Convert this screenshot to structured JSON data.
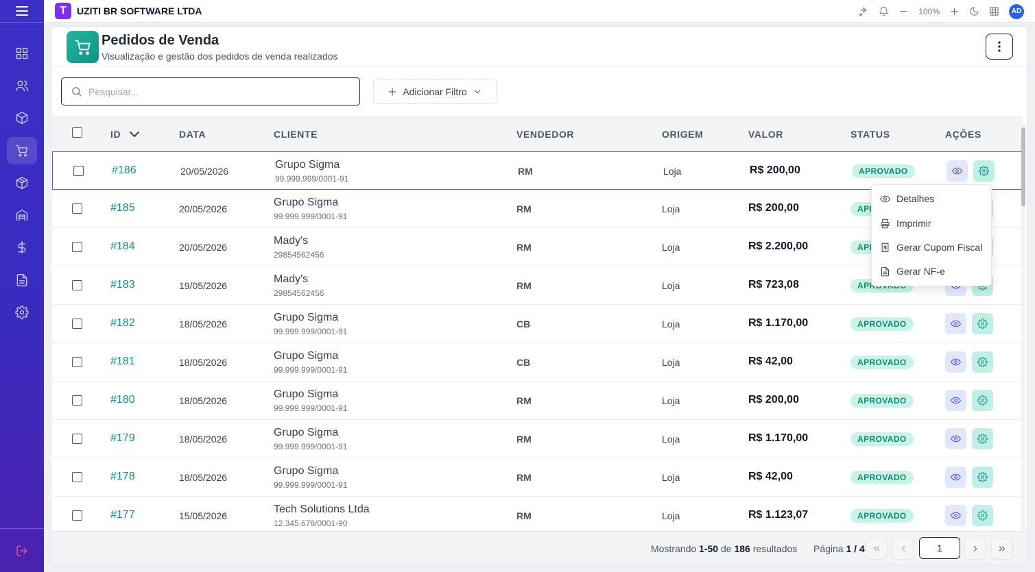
{
  "app": {
    "title": "UZITI BR SOFTWARE LTDA",
    "logo_letter": "T",
    "zoom": "100%",
    "avatar_initials": "AD"
  },
  "sidebar": {
    "items": [
      {
        "name": "dashboard-icon"
      },
      {
        "name": "users-icon"
      },
      {
        "name": "box-icon"
      },
      {
        "name": "cart-icon",
        "active": true
      },
      {
        "name": "package-icon"
      },
      {
        "name": "warehouse-icon"
      },
      {
        "name": "dollar-icon"
      },
      {
        "name": "document-icon"
      },
      {
        "name": "gear-icon"
      }
    ],
    "logout_icon": "logout-icon"
  },
  "page": {
    "title": "Pedidos de Venda",
    "subtitle": "Visualização e gestão dos pedidos de venda realizados"
  },
  "search": {
    "placeholder": "Pesquisar...",
    "value": ""
  },
  "filter_button": {
    "label": "Adicionar Filtro"
  },
  "table": {
    "headers": {
      "id": "ID",
      "data": "DATA",
      "cliente": "CLIENTE",
      "vendedor": "VENDEDOR",
      "origem": "ORIGEM",
      "valor": "VALOR",
      "status": "STATUS",
      "acoes": "AÇÕES"
    },
    "rows": [
      {
        "id": "#186",
        "data": "20/05/2026",
        "cliente": "Grupo Sigma",
        "doc": "99.999.999/0001-91",
        "vendedor": "RM",
        "origem": "Loja",
        "valor": "R$ 200,00",
        "status": "APROVADO"
      },
      {
        "id": "#185",
        "data": "20/05/2026",
        "cliente": "Grupo Sigma",
        "doc": "99.999.999/0001-91",
        "vendedor": "RM",
        "origem": "Loja",
        "valor": "R$ 200,00",
        "status": "APROVADO"
      },
      {
        "id": "#184",
        "data": "20/05/2026",
        "cliente": "Mady's",
        "doc": "29854562456",
        "vendedor": "RM",
        "origem": "Loja",
        "valor": "R$ 2.200,00",
        "status": "APROVADO"
      },
      {
        "id": "#183",
        "data": "19/05/2026",
        "cliente": "Mady's",
        "doc": "29854562456",
        "vendedor": "RM",
        "origem": "Loja",
        "valor": "R$ 723,08",
        "status": "APROVADO"
      },
      {
        "id": "#182",
        "data": "18/05/2026",
        "cliente": "Grupo Sigma",
        "doc": "99.999.999/0001-91",
        "vendedor": "CB",
        "origem": "Loja",
        "valor": "R$ 1.170,00",
        "status": "APROVADO"
      },
      {
        "id": "#181",
        "data": "18/05/2026",
        "cliente": "Grupo Sigma",
        "doc": "99.999.999/0001-91",
        "vendedor": "CB",
        "origem": "Loja",
        "valor": "R$ 42,00",
        "status": "APROVADO"
      },
      {
        "id": "#180",
        "data": "18/05/2026",
        "cliente": "Grupo Sigma",
        "doc": "99.999.999/0001-91",
        "vendedor": "RM",
        "origem": "Loja",
        "valor": "R$ 200,00",
        "status": "APROVADO"
      },
      {
        "id": "#179",
        "data": "18/05/2026",
        "cliente": "Grupo Sigma",
        "doc": "99.999.999/0001-91",
        "vendedor": "RM",
        "origem": "Loja",
        "valor": "R$ 1.170,00",
        "status": "APROVADO"
      },
      {
        "id": "#178",
        "data": "18/05/2026",
        "cliente": "Grupo Sigma",
        "doc": "99.999.999/0001-91",
        "vendedor": "RM",
        "origem": "Loja",
        "valor": "R$ 42,00",
        "status": "APROVADO"
      },
      {
        "id": "#177",
        "data": "15/05/2026",
        "cliente": "Tech Solutions Ltda",
        "doc": "12.345.678/0001-90",
        "vendedor": "RM",
        "origem": "Loja",
        "valor": "R$ 1.123,07",
        "status": "APROVADO"
      }
    ]
  },
  "context_menu": {
    "items": [
      {
        "label": "Detalhes",
        "icon": "eye-icon"
      },
      {
        "label": "Imprimir",
        "icon": "printer-icon"
      },
      {
        "label": "Gerar Cupom Fiscal",
        "icon": "receipt-icon"
      },
      {
        "label": "Gerar NF-e",
        "icon": "file-icon"
      }
    ]
  },
  "pagination": {
    "showing_prefix": "Mostrando",
    "range": "1-50",
    "of": "de",
    "total": "186",
    "results": "resultados",
    "page_label": "Página",
    "page_info": "1 / 4",
    "current_page": "1"
  },
  "colors": {
    "sidebar": "#3b2fc7",
    "accent": "#0f9486",
    "badge_bg": "#c9f3e6",
    "selected_border": "#5563d9"
  }
}
